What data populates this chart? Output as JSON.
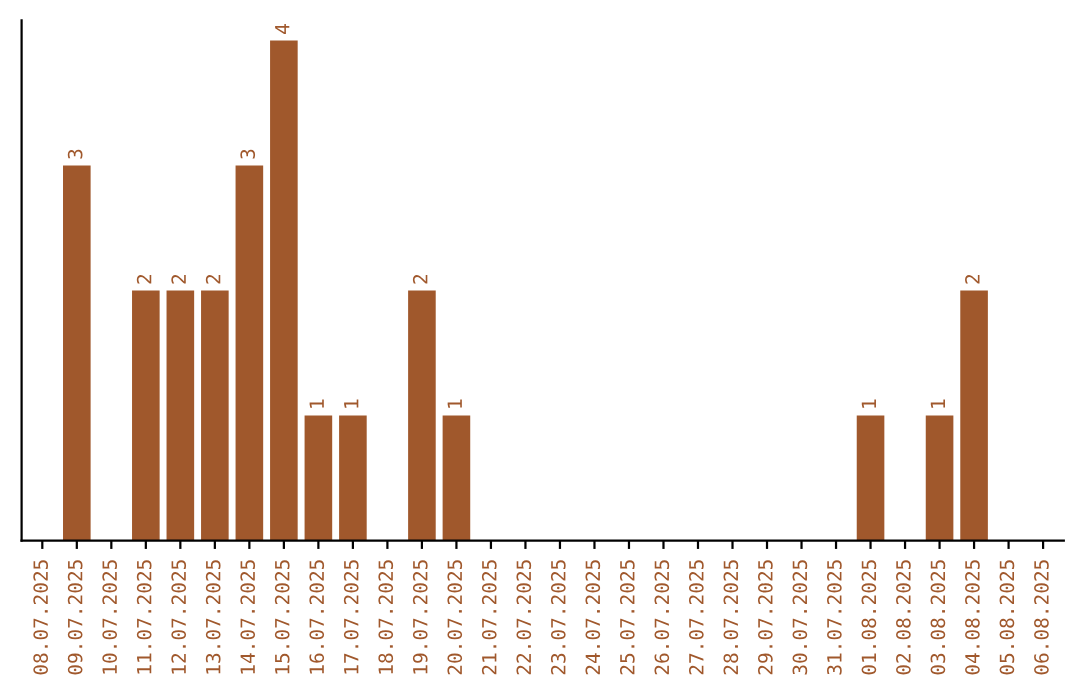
{
  "chart_data": {
    "type": "bar",
    "categories": [
      "08.07.2025",
      "09.07.2025",
      "10.07.2025",
      "11.07.2025",
      "12.07.2025",
      "13.07.2025",
      "14.07.2025",
      "15.07.2025",
      "16.07.2025",
      "17.07.2025",
      "18.07.2025",
      "19.07.2025",
      "20.07.2025",
      "21.07.2025",
      "22.07.2025",
      "23.07.2025",
      "24.07.2025",
      "25.07.2025",
      "26.07.2025",
      "27.07.2025",
      "28.07.2025",
      "29.07.2025",
      "30.07.2025",
      "31.07.2025",
      "01.08.2025",
      "02.08.2025",
      "03.08.2025",
      "04.08.2025",
      "05.08.2025",
      "06.08.2025"
    ],
    "values": [
      0,
      3,
      0,
      2,
      2,
      2,
      3,
      4,
      1,
      1,
      0,
      2,
      1,
      0,
      0,
      0,
      0,
      0,
      0,
      0,
      0,
      0,
      0,
      0,
      1,
      0,
      1,
      2,
      0,
      0
    ],
    "value_labels": [
      null,
      "3",
      null,
      "2",
      "2",
      "2",
      "3",
      "4",
      "1",
      "1",
      null,
      "2",
      "1",
      null,
      null,
      null,
      null,
      null,
      null,
      null,
      null,
      null,
      null,
      null,
      "1",
      null,
      "1",
      "2",
      null,
      null
    ],
    "color": "#a0582c",
    "tick_labels": "x",
    "grid": false,
    "legend": false
  }
}
